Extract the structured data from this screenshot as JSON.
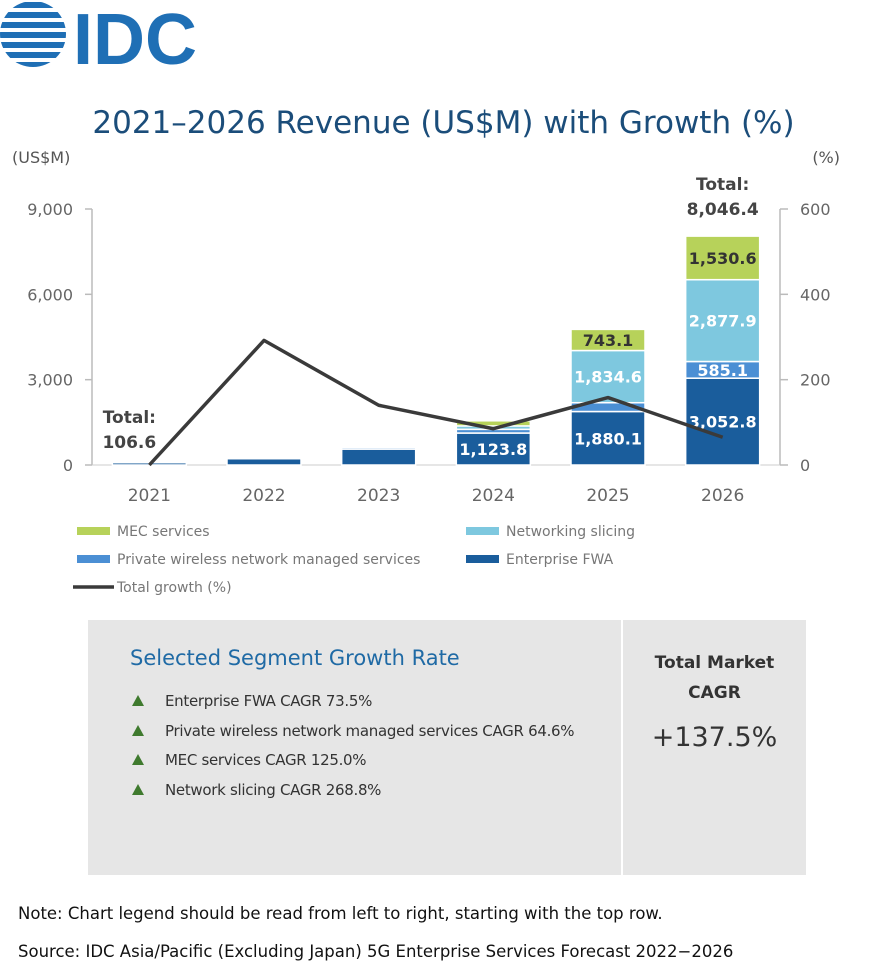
{
  "logo": {
    "text": "IDC",
    "color": "#1f6fb5"
  },
  "chart_data": {
    "type": "bar",
    "stacked": true,
    "title": "2021–2026 Revenue (US$M) with Growth (%)",
    "y_left_label": "(US$M)",
    "y_right_label": "(%)",
    "categories": [
      "2021",
      "2022",
      "2023",
      "2024",
      "2025",
      "2026"
    ],
    "ylim": [
      0,
      9000
    ],
    "y_ticks": [
      "0",
      "3,000",
      "6,000",
      "9,000"
    ],
    "y2lim": [
      0,
      600
    ],
    "y2_ticks": [
      "0",
      "200",
      "400",
      "600"
    ],
    "series": [
      {
        "name": "Enterprise FWA",
        "color": "#1a5d9c",
        "values": [
          100,
          230,
          560,
          1123.8,
          1880.1,
          3052.8
        ],
        "labels": [
          "",
          "",
          "",
          "1,123.8",
          "1,880.1",
          "3,052.8"
        ]
      },
      {
        "name": "Private wireless network managed services",
        "color": "#4b8fd4",
        "values": [
          3,
          10,
          60,
          130,
          310,
          585.1
        ],
        "labels": [
          "",
          "",
          "",
          "",
          "",
          "585.1"
        ]
      },
      {
        "name": "Networking slicing",
        "color": "#7ec8df",
        "values": [
          2,
          6,
          40,
          120,
          1834.6,
          2877.9
        ],
        "labels": [
          "",
          "",
          "",
          "",
          "1,834.6",
          "2,877.9"
        ]
      },
      {
        "name": "MEC services",
        "color": "#b7d25a",
        "values": [
          1.6,
          5,
          30,
          180,
          743.1,
          1530.6
        ],
        "labels": [
          "",
          "",
          "",
          "",
          "743.1",
          "1,530.6"
        ]
      }
    ],
    "line": {
      "name": "Total growth (%)",
      "color": "#3a3a3a",
      "values": [
        0,
        292,
        140,
        85,
        158,
        65
      ]
    },
    "totals": [
      {
        "category": "2021",
        "label": "Total:",
        "value": "106.6"
      },
      {
        "category": "2026",
        "label": "Total:",
        "value": "8,046.4"
      }
    ],
    "legend": [
      "MEC services",
      "Networking slicing",
      "Private wireless network managed services",
      "Enterprise FWA",
      "Total growth (%)"
    ],
    "grid": false
  },
  "panel": {
    "title": "Selected Segment Growth Rate",
    "items": [
      "Enterprise FWA CAGR 73.5%",
      "Private wireless network managed services CAGR 64.6%",
      "MEC services CAGR 125.0%",
      "Network slicing CAGR 268.8%"
    ],
    "cagr_label_line1": "Total Market",
    "cagr_label_line2": "CAGR",
    "cagr_value": "+137.5%"
  },
  "note": "Note: Chart legend should be read from left to right, starting with the top row.",
  "source": "Source: IDC Asia/Pacific (Excluding Japan) 5G Enterprise Services Forecast 2022−2026"
}
